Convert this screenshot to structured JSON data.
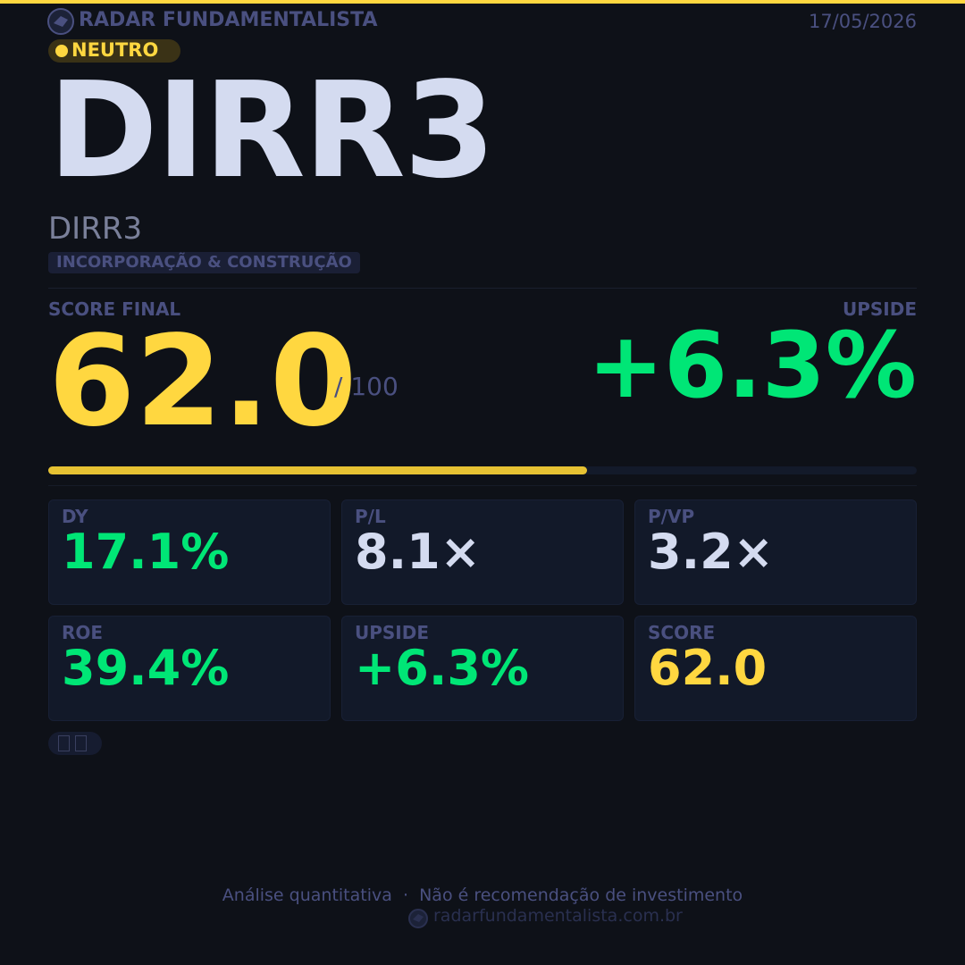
{
  "header": {
    "brand": "RADAR FUNDAMENTALISTA",
    "date": "17/05/2026",
    "badge": "NEUTRO"
  },
  "ticker": "DIRR3",
  "name": "DIRR3",
  "sector": "INCORPORAÇÃO & CONSTRUÇÃO",
  "score": {
    "title": "SCORE FINAL",
    "value": 62,
    "label": "62.0",
    "max": {
      "value": 100,
      "label": "/ 100"
    }
  },
  "upside": {
    "title": "UPSIDE",
    "label": "+6.3%"
  },
  "cards": [
    {
      "label": "DY",
      "value": "17.1%",
      "color": "#00e676"
    },
    {
      "label": "P/L",
      "value": "8.1×",
      "color": "#d4dbf0"
    },
    {
      "label": "P/VP",
      "value": "3.2×",
      "color": "#d4dbf0"
    },
    {
      "label": "ROE",
      "value": "39.4%",
      "color": "#00e676"
    },
    {
      "label": "UPSIDE",
      "value": "+6.3%",
      "color": "#00e676"
    },
    {
      "label": "SCORE",
      "value": "62.0",
      "color": "#ffd740"
    }
  ],
  "footer": {
    "disclaimer": "Análise quantitativa  ·  Não é recomendação de investimento",
    "url": "radarfundamentalista.com.br"
  }
}
